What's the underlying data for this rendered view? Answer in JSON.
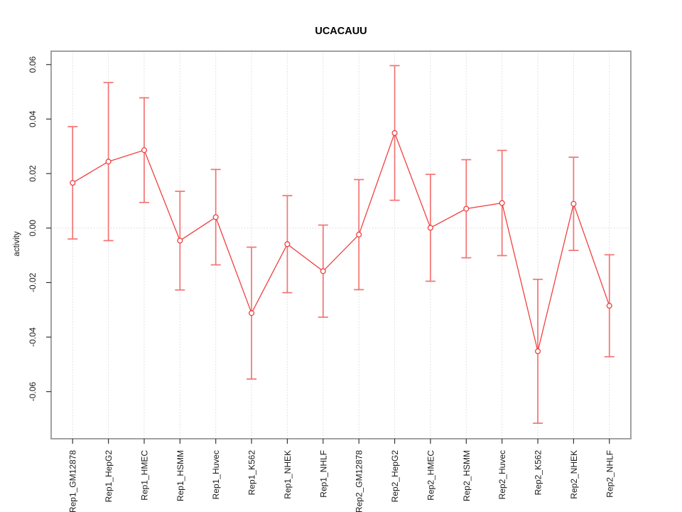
{
  "title": "UCACAUU",
  "ylabel": "activity",
  "chart_data": {
    "type": "line",
    "title": "UCACAUU",
    "xlabel": "",
    "ylabel": "activity",
    "categories": [
      "Rep1_GM12878",
      "Rep1_HepG2",
      "Rep1_HMEC",
      "Rep1_HSMM",
      "Rep1_Huvec",
      "Rep1_K562",
      "Rep1_NHEK",
      "Rep1_NHLF",
      "Rep2_GM12878",
      "Rep2_HepG2",
      "Rep2_HMEC",
      "Rep2_HSMM",
      "Rep2_Huvec",
      "Rep2_K562",
      "Rep2_NHEK",
      "Rep2_NHLF"
    ],
    "series": [
      {
        "name": "activity",
        "values": [
          0.0166,
          0.0244,
          0.0286,
          -0.0046,
          0.004,
          -0.0312,
          -0.0059,
          -0.0158,
          -0.0024,
          0.0349,
          0.0001,
          0.0071,
          0.0092,
          -0.0452,
          0.0089,
          -0.0285
        ],
        "error_upper": [
          0.0372,
          0.0534,
          0.0478,
          0.0135,
          0.0215,
          -0.007,
          0.0119,
          0.0011,
          0.0178,
          0.0596,
          0.0197,
          0.0251,
          0.0285,
          -0.0188,
          0.026,
          -0.0098
        ],
        "error_lower": [
          -0.004,
          -0.0046,
          0.0094,
          -0.0227,
          -0.0135,
          -0.0554,
          -0.0237,
          -0.0327,
          -0.0226,
          0.0102,
          -0.0195,
          -0.0109,
          -0.0101,
          -0.0716,
          -0.0082,
          -0.0472
        ]
      }
    ],
    "ytick_values": [
      0.06,
      0.04,
      0.02,
      0,
      -0.02,
      -0.04,
      -0.06
    ],
    "ytick_labels": [
      "0.06",
      "0.04",
      "0.02",
      "0.00",
      "-0.02",
      "-0.04",
      "-0.06"
    ],
    "ylim": [
      -0.0773,
      0.0649
    ],
    "grid": "vertical dotted gridlines at each category; dotted horizontal line at y=0",
    "legend": "none",
    "marker": "open-circle",
    "colors": {
      "series_line": "#f04040",
      "error_bar": "#f37373",
      "gridline": "#dcdcdc",
      "plot_border": "#8a8a8a",
      "tick_mark": "#333333",
      "tick_text": "#1a1a1a",
      "title_text": "#000000"
    }
  }
}
